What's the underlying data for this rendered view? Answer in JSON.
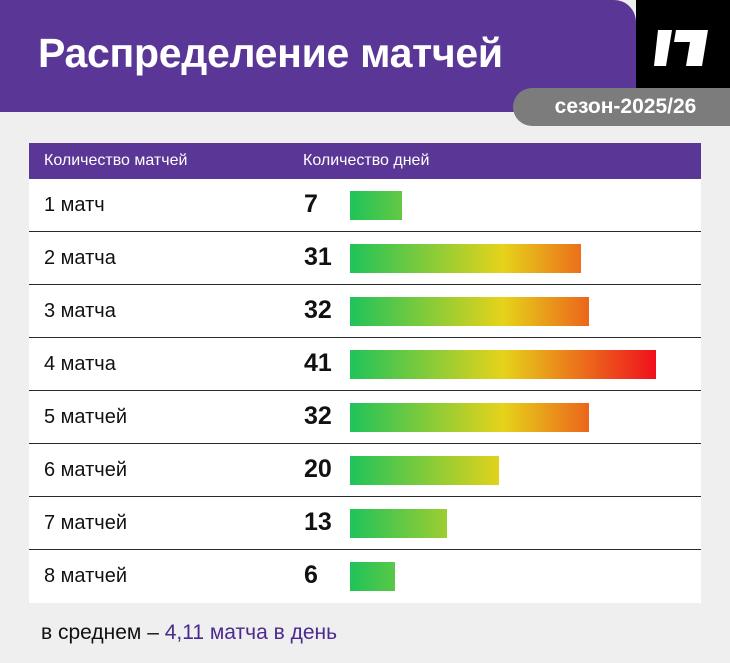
{
  "header": {
    "title": "Распределение матчей",
    "season": "сезон-2025/26"
  },
  "table": {
    "col_matches": "Количество матчей",
    "col_days": "Количество дней"
  },
  "chart_data": {
    "type": "bar",
    "orientation": "horizontal",
    "categories": [
      "1 матч",
      "2 матча",
      "3 матча",
      "4 матча",
      "5 матчей",
      "6 матчей",
      "7 матчей",
      "8 матчей"
    ],
    "values": [
      7,
      31,
      32,
      41,
      32,
      20,
      13,
      6
    ],
    "xlim": [
      0,
      41
    ],
    "gradient_colors": [
      "#1fc35a",
      "#e6d31a",
      "#f0101c"
    ]
  },
  "footer": {
    "prefix": "в среднем – ",
    "highlight": "4,11 матча в день"
  },
  "colors": {
    "brand": "#5a3796",
    "pill": "#7c7c7c",
    "background": "#efefef"
  },
  "icons": {
    "logo": "brand-logo-icon"
  }
}
